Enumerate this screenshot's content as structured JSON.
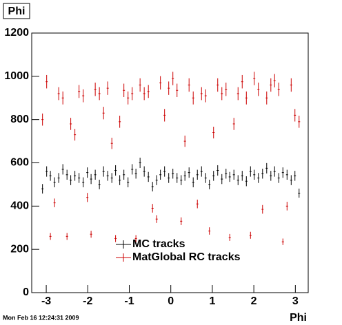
{
  "chart_data": {
    "type": "errorbar",
    "title": "Phi",
    "x_label": "Phi",
    "footer": "Mon Feb 16 12:24:31 2009",
    "x": [
      -3.09,
      -2.99,
      -2.9,
      -2.8,
      -2.7,
      -2.6,
      -2.5,
      -2.41,
      -2.31,
      -2.21,
      -2.11,
      -2.01,
      -1.92,
      -1.82,
      -1.72,
      -1.62,
      -1.52,
      -1.42,
      -1.33,
      -1.23,
      -1.13,
      -1.03,
      -0.93,
      -0.84,
      -0.74,
      -0.64,
      -0.54,
      -0.44,
      -0.34,
      -0.25,
      -0.15,
      -0.05,
      0.05,
      0.15,
      0.25,
      0.34,
      0.44,
      0.54,
      0.64,
      0.74,
      0.84,
      0.93,
      1.03,
      1.13,
      1.23,
      1.33,
      1.42,
      1.52,
      1.62,
      1.72,
      1.82,
      1.92,
      2.01,
      2.11,
      2.21,
      2.31,
      2.41,
      2.5,
      2.6,
      2.7,
      2.8,
      2.9,
      2.99,
      3.09
    ],
    "series": [
      {
        "name": "MC tracks",
        "color": "#000000",
        "values": [
          480,
          560,
          540,
          510,
          530,
          570,
          545,
          520,
          540,
          530,
          510,
          555,
          525,
          545,
          500,
          560,
          540,
          530,
          565,
          520,
          545,
          510,
          570,
          550,
          600,
          560,
          535,
          490,
          520,
          545,
          560,
          530,
          550,
          530,
          520,
          540,
          555,
          510,
          545,
          560,
          530,
          500,
          540,
          565,
          525,
          550,
          535,
          545,
          520,
          540,
          515,
          560,
          545,
          530,
          550,
          575,
          540,
          560,
          530,
          555,
          545,
          520,
          540,
          460
        ],
        "errors": [
          22,
          24,
          23,
          23,
          23,
          24,
          23,
          23,
          23,
          23,
          23,
          24,
          23,
          23,
          22,
          24,
          23,
          23,
          24,
          23,
          23,
          23,
          24,
          23,
          24,
          24,
          23,
          22,
          23,
          23,
          24,
          23,
          23,
          23,
          23,
          23,
          24,
          23,
          23,
          24,
          23,
          22,
          23,
          24,
          23,
          23,
          23,
          23,
          23,
          23,
          23,
          24,
          23,
          23,
          23,
          24,
          23,
          24,
          23,
          24,
          23,
          23,
          23,
          21
        ]
      },
      {
        "name": "MatGlobal RC tracks",
        "color": "#cc0000",
        "values": [
          800,
          975,
          260,
          415,
          920,
          900,
          260,
          780,
          730,
          930,
          910,
          440,
          270,
          940,
          920,
          830,
          945,
          690,
          250,
          790,
          935,
          900,
          920,
          250,
          960,
          920,
          930,
          390,
          340,
          970,
          820,
          945,
          990,
          935,
          330,
          700,
          960,
          900,
          410,
          920,
          910,
          285,
          740,
          960,
          920,
          940,
          255,
          780,
          920,
          975,
          900,
          265,
          990,
          940,
          385,
          900,
          960,
          980,
          940,
          235,
          400,
          960,
          820,
          790
        ],
        "errors": [
          28,
          31,
          16,
          20,
          30,
          30,
          16,
          28,
          27,
          30,
          30,
          21,
          16,
          31,
          30,
          29,
          31,
          26,
          16,
          28,
          31,
          30,
          30,
          16,
          31,
          30,
          30,
          20,
          18,
          31,
          29,
          31,
          31,
          31,
          18,
          26,
          31,
          30,
          20,
          30,
          30,
          17,
          27,
          31,
          30,
          31,
          16,
          28,
          30,
          31,
          30,
          16,
          31,
          31,
          20,
          30,
          31,
          31,
          31,
          15,
          20,
          31,
          29,
          28
        ]
      }
    ],
    "xlim": [
      -3.35,
      3.31
    ],
    "xticks": [
      -3,
      -2,
      -1,
      0,
      1,
      2,
      3
    ],
    "ylim": [
      0,
      1200
    ],
    "yticks": [
      0,
      200,
      400,
      600,
      800,
      1000,
      1200
    ]
  }
}
